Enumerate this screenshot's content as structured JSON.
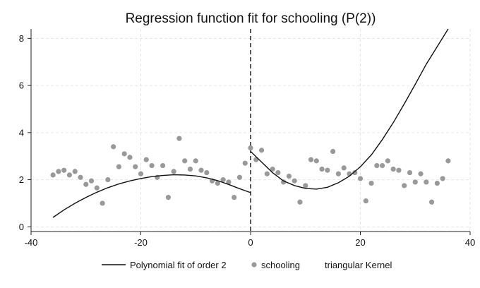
{
  "chart_data": {
    "type": "scatter",
    "title": "Regression function fit for schooling (P(2))",
    "xlabel": "",
    "ylabel": "",
    "xlim": [
      -40,
      40
    ],
    "ylim": [
      -0.2,
      8.4
    ],
    "xticks": [
      -40,
      -20,
      0,
      20,
      40
    ],
    "yticks": [
      0,
      2,
      4,
      6,
      8
    ],
    "grid": true,
    "cutoff": 0,
    "legend_position": "bottom",
    "legend": [
      "Polynomial fit of order 2",
      "schooling",
      "triangular Kernel"
    ],
    "colors": {
      "points": "#999999",
      "fit": "#111111",
      "grid": "#e6e6e6"
    },
    "series": [
      {
        "name": "schooling",
        "kind": "scatter",
        "points": [
          [
            -36,
            2.2
          ],
          [
            -35,
            2.35
          ],
          [
            -34,
            2.4
          ],
          [
            -33,
            2.2
          ],
          [
            -32,
            2.35
          ],
          [
            -31,
            2.1
          ],
          [
            -30,
            1.8
          ],
          [
            -29,
            1.95
          ],
          [
            -28,
            1.65
          ],
          [
            -27,
            1.0
          ],
          [
            -26,
            2.0
          ],
          [
            -25,
            3.4
          ],
          [
            -24,
            2.55
          ],
          [
            -23,
            3.1
          ],
          [
            -22,
            2.95
          ],
          [
            -21,
            2.55
          ],
          [
            -20,
            2.25
          ],
          [
            -19,
            2.85
          ],
          [
            -18,
            2.6
          ],
          [
            -17,
            2.1
          ],
          [
            -16,
            2.6
          ],
          [
            -15,
            1.25
          ],
          [
            -14,
            2.35
          ],
          [
            -13,
            3.75
          ],
          [
            -12,
            2.8
          ],
          [
            -11,
            2.45
          ],
          [
            -10,
            2.8
          ],
          [
            -9,
            2.4
          ],
          [
            -8,
            2.3
          ],
          [
            -7,
            1.95
          ],
          [
            -6,
            1.85
          ],
          [
            -5,
            2.0
          ],
          [
            -4,
            1.9
          ],
          [
            -3,
            1.25
          ],
          [
            -2,
            2.1
          ],
          [
            -1,
            2.7
          ],
          [
            0,
            3.35
          ],
          [
            1,
            2.85
          ],
          [
            2,
            3.25
          ],
          [
            3,
            2.25
          ],
          [
            4,
            2.45
          ],
          [
            5,
            2.3
          ],
          [
            6,
            1.9
          ],
          [
            7,
            2.15
          ],
          [
            8,
            1.95
          ],
          [
            9,
            1.05
          ],
          [
            10,
            1.75
          ],
          [
            11,
            2.85
          ],
          [
            12,
            2.8
          ],
          [
            13,
            2.45
          ],
          [
            14,
            2.4
          ],
          [
            15,
            3.2
          ],
          [
            16,
            2.25
          ],
          [
            17,
            2.5
          ],
          [
            18,
            2.25
          ],
          [
            19,
            2.3
          ],
          [
            20,
            2.05
          ],
          [
            21,
            1.1
          ],
          [
            22,
            1.85
          ],
          [
            23,
            2.6
          ],
          [
            24,
            2.6
          ],
          [
            25,
            2.8
          ],
          [
            26,
            2.45
          ],
          [
            27,
            2.4
          ],
          [
            28,
            1.75
          ],
          [
            29,
            2.3
          ],
          [
            30,
            1.9
          ],
          [
            31,
            2.25
          ],
          [
            32,
            1.9
          ],
          [
            33,
            1.05
          ],
          [
            34,
            1.85
          ],
          [
            35,
            2.05
          ],
          [
            36,
            2.8
          ]
        ]
      },
      {
        "name": "Polynomial fit of order 2",
        "kind": "line",
        "side": "left",
        "points": [
          [
            -36,
            0.4
          ],
          [
            -34,
            0.72
          ],
          [
            -32,
            1.0
          ],
          [
            -30,
            1.25
          ],
          [
            -28,
            1.47
          ],
          [
            -26,
            1.66
          ],
          [
            -24,
            1.82
          ],
          [
            -22,
            1.95
          ],
          [
            -20,
            2.05
          ],
          [
            -18,
            2.13
          ],
          [
            -16,
            2.18
          ],
          [
            -14,
            2.21
          ],
          [
            -12,
            2.2
          ],
          [
            -10,
            2.16
          ],
          [
            -8,
            2.08
          ],
          [
            -6,
            1.96
          ],
          [
            -4,
            1.8
          ],
          [
            -2,
            1.62
          ],
          [
            0,
            1.45
          ]
        ]
      },
      {
        "name": "Polynomial fit of order 2",
        "kind": "line",
        "side": "right",
        "points": [
          [
            0,
            3.2
          ],
          [
            2,
            2.75
          ],
          [
            4,
            2.3
          ],
          [
            6,
            1.95
          ],
          [
            8,
            1.75
          ],
          [
            10,
            1.63
          ],
          [
            12,
            1.6
          ],
          [
            14,
            1.68
          ],
          [
            16,
            1.87
          ],
          [
            18,
            2.15
          ],
          [
            20,
            2.55
          ],
          [
            22,
            3.05
          ],
          [
            24,
            3.7
          ],
          [
            26,
            4.42
          ],
          [
            28,
            5.22
          ],
          [
            30,
            6.05
          ],
          [
            32,
            6.9
          ],
          [
            34,
            7.65
          ],
          [
            36,
            8.4
          ]
        ]
      }
    ]
  }
}
